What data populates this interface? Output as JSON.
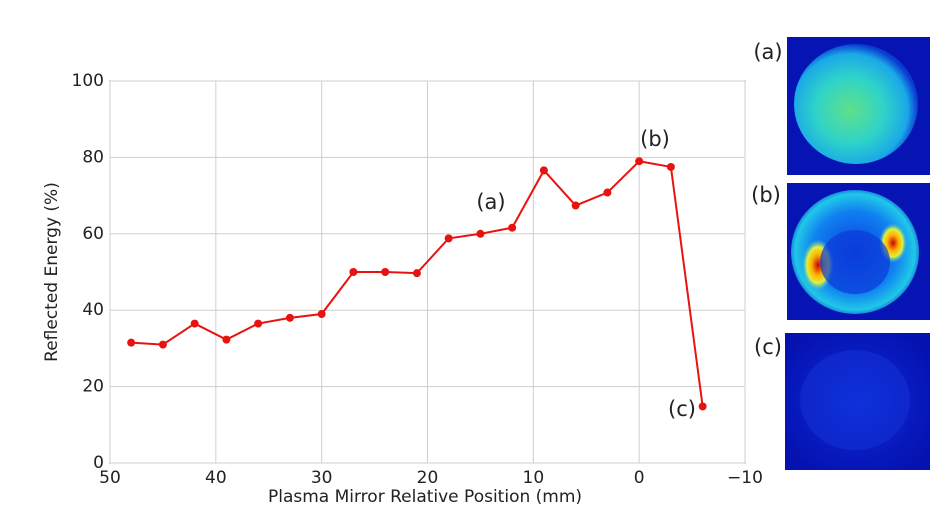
{
  "chart_data": {
    "type": "line",
    "x_label": "Plasma Mirror Relative Position (mm)",
    "y_label": "Reflected Energy (%)",
    "x": [
      48,
      45,
      42,
      39,
      36,
      33,
      30,
      27,
      24,
      21,
      18,
      15,
      12,
      9,
      6,
      3,
      0,
      -3,
      -6
    ],
    "series": [
      {
        "color": "#e8130e",
        "values": [
          31.5,
          31,
          36.5,
          32.3,
          36.5,
          38,
          39,
          50,
          50,
          49.7,
          58.8,
          60,
          61.6,
          76.6,
          67.4,
          70.8,
          79,
          77.5,
          14.8
        ]
      }
    ],
    "xlim": [
      50,
      -10
    ],
    "xticks": [
      50,
      40,
      30,
      20,
      10,
      0,
      {
        "value": -10,
        "label": "−10"
      }
    ],
    "ylim": [
      0,
      100
    ],
    "yticks": [
      0,
      20,
      40,
      60,
      80,
      100
    ],
    "grid": true,
    "annotations": [
      "(a)",
      "(b)",
      "(c)"
    ],
    "panels": [
      "(a)",
      "(b)",
      "(c)"
    ]
  }
}
